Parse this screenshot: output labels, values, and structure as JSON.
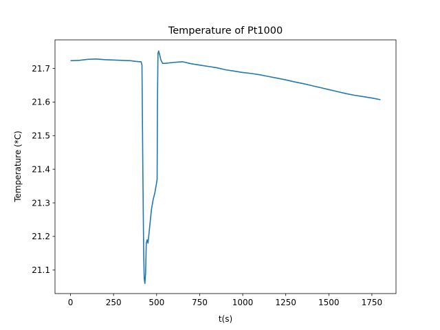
{
  "chart_data": {
    "type": "line",
    "title": "Temperature of Pt1000",
    "xlabel": "t(s)",
    "ylabel": "Temperature (*C)",
    "xlim": [
      -90,
      1890
    ],
    "ylim": [
      21.03,
      21.785
    ],
    "xticks": [
      0,
      250,
      500,
      750,
      1000,
      1250,
      1500,
      1750
    ],
    "xtick_labels": [
      "0",
      "250",
      "500",
      "750",
      "1000",
      "1250",
      "1500",
      "1750"
    ],
    "yticks": [
      21.1,
      21.2,
      21.3,
      21.4,
      21.5,
      21.6,
      21.7
    ],
    "ytick_labels": [
      "21.1",
      "21.2",
      "21.3",
      "21.4",
      "21.5",
      "21.6",
      "21.7"
    ],
    "grid": false,
    "line_color": "#1f77b4",
    "series": [
      {
        "x": [
          0,
          50,
          100,
          150,
          200,
          250,
          300,
          350,
          380,
          400,
          410,
          415,
          420,
          425,
          428,
          432,
          436,
          440,
          445,
          450,
          460,
          470,
          480,
          490,
          500,
          503,
          505,
          508,
          512,
          518,
          525,
          535,
          550,
          600,
          650,
          700,
          750,
          800,
          850,
          900,
          950,
          1000,
          1050,
          1100,
          1150,
          1200,
          1250,
          1300,
          1350,
          1400,
          1450,
          1500,
          1550,
          1600,
          1650,
          1700,
          1750,
          1800
        ],
        "y": [
          21.723,
          21.724,
          21.727,
          21.728,
          21.726,
          21.725,
          21.724,
          21.723,
          21.721,
          21.72,
          21.72,
          21.71,
          21.4,
          21.15,
          21.075,
          21.06,
          21.09,
          21.18,
          21.19,
          21.18,
          21.23,
          21.28,
          21.31,
          21.33,
          21.36,
          21.37,
          21.6,
          21.745,
          21.752,
          21.74,
          21.725,
          21.715,
          21.715,
          21.718,
          21.72,
          21.714,
          21.71,
          21.706,
          21.702,
          21.696,
          21.692,
          21.688,
          21.685,
          21.681,
          21.676,
          21.671,
          21.666,
          21.66,
          21.655,
          21.649,
          21.643,
          21.637,
          21.631,
          21.625,
          21.62,
          21.616,
          21.612,
          21.607
        ]
      }
    ]
  }
}
